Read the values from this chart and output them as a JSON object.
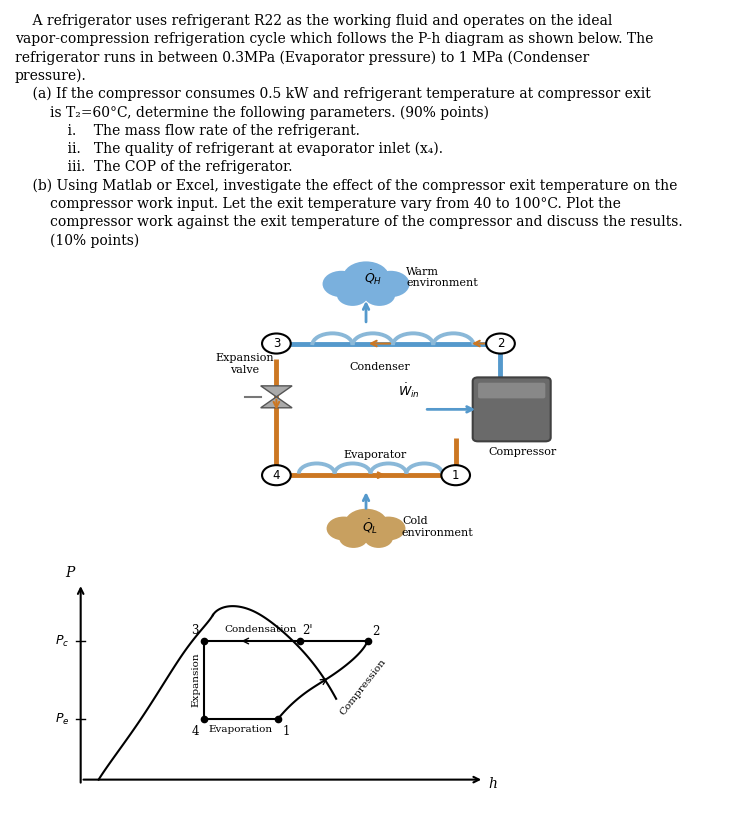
{
  "text_lines": [
    [
      "    A refrigerator uses refrigerant R22 as the working fluid and operates on the ideal",
      false
    ],
    [
      "vapor-compression refrigeration cycle which follows the P-h diagram as shown below. The",
      false
    ],
    [
      "refrigerator runs in between 0.3MPa (Evaporator pressure) to 1 MPa (Condenser",
      false
    ],
    [
      "pressure).",
      false
    ],
    [
      "    (a) If the compressor consumes 0.5 kW and refrigerant temperature at compressor exit",
      false
    ],
    [
      "        is T₂=60°C, determine the following parameters. (90% points)",
      false
    ],
    [
      "            i.    The mass flow rate of the refrigerant.",
      false
    ],
    [
      "            ii.   The quality of refrigerant at evaporator inlet (x₄).",
      false
    ],
    [
      "            iii.  The COP of the refrigerator.",
      false
    ],
    [
      "    (b) Using Matlab or Excel, investigate the effect of the compressor exit temperature on the",
      false
    ],
    [
      "        compressor work input. Let the exit temperature vary from 40 to 100°C. Plot the",
      false
    ],
    [
      "        compressor work against the exit temperature of the compressor and discuss the results.",
      false
    ],
    [
      "        (10% points)",
      false
    ]
  ],
  "bg_color": "#ffffff",
  "text_color": "#000000",
  "font_size": 10.0,
  "blue_pipe": "#5599cc",
  "orange_pipe": "#cc7722",
  "cloud_blue": "#7ab0dd",
  "cloud_warm": "#7ab0dd",
  "cloud_cold": "#c8a060",
  "compressor_color": "#888888"
}
